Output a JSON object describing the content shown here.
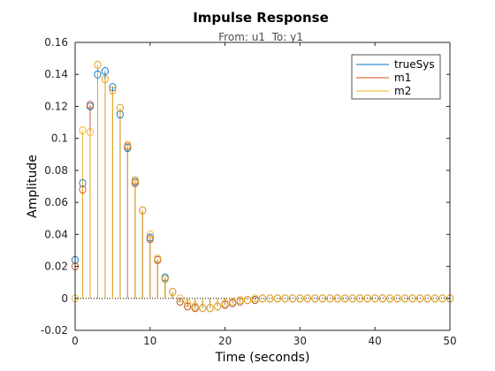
{
  "chart_data": {
    "type": "line",
    "plot_style": "stem",
    "title": "Impulse Response",
    "subtitle": "From: u1  To: y1",
    "xlabel": "Time (seconds)",
    "ylabel": "Amplitude",
    "xlim": [
      0,
      50
    ],
    "ylim": [
      -0.02,
      0.16
    ],
    "xticks": [
      0,
      10,
      20,
      30,
      40,
      50
    ],
    "yticks": [
      -0.02,
      0,
      0.02,
      0.04,
      0.06,
      0.08,
      0.1,
      0.12,
      0.14,
      0.16
    ],
    "ytick_labels": [
      "-0.02",
      "0",
      "0.02",
      "0.04",
      "0.06",
      "0.08",
      "0.1",
      "0.12",
      "0.14",
      "0.16"
    ],
    "grid": false,
    "legend_position": "top-right",
    "series": [
      {
        "name": "trueSys",
        "color": "#0072bd",
        "x": [
          0,
          1,
          2,
          3,
          4,
          5,
          6,
          7,
          8,
          9,
          10,
          11,
          12,
          13,
          14,
          15,
          16,
          17,
          18,
          19,
          20,
          21,
          22,
          23,
          24,
          25,
          26,
          27,
          28,
          29,
          30,
          31,
          32,
          33,
          34,
          35,
          36,
          37,
          38,
          39,
          40,
          41,
          42,
          43,
          44,
          45,
          46,
          47,
          48,
          49,
          50
        ],
        "y": [
          0.024,
          0.072,
          0.12,
          0.14,
          0.142,
          0.132,
          0.115,
          0.094,
          0.073,
          0.055,
          0.038,
          0.024,
          0.013,
          0.004,
          -0.002,
          -0.005,
          -0.006,
          -0.006,
          -0.006,
          -0.005,
          -0.004,
          -0.003,
          -0.002,
          -0.001,
          -0.001,
          0,
          0,
          0,
          0,
          0,
          0,
          0,
          0,
          0,
          0,
          0,
          0,
          0,
          0,
          0,
          0,
          0,
          0,
          0,
          0,
          0,
          0,
          0,
          0,
          0,
          0
        ]
      },
      {
        "name": "m1",
        "color": "#d95319",
        "x": [
          0,
          1,
          2,
          3,
          4,
          5,
          6,
          7,
          8,
          9,
          10,
          11,
          12,
          13,
          14,
          15,
          16,
          17,
          18,
          19,
          20,
          21,
          22,
          23,
          24,
          25,
          26,
          27,
          28,
          29,
          30,
          31,
          32,
          33,
          34,
          35,
          36,
          37,
          38,
          39,
          40,
          41,
          42,
          43,
          44,
          45,
          46,
          47,
          48,
          49,
          50
        ],
        "y": [
          0.02,
          0.068,
          0.121,
          0.146,
          0.137,
          0.13,
          0.119,
          0.095,
          0.072,
          0.055,
          0.037,
          0.024,
          0.012,
          0.004,
          -0.002,
          -0.005,
          -0.006,
          -0.006,
          -0.006,
          -0.005,
          -0.004,
          -0.003,
          -0.002,
          -0.001,
          -0.001,
          0,
          0,
          0,
          0,
          0,
          0,
          0,
          0,
          0,
          0,
          0,
          0,
          0,
          0,
          0,
          0,
          0,
          0,
          0,
          0,
          0,
          0,
          0,
          0,
          0,
          0
        ]
      },
      {
        "name": "m2",
        "color": "#edb120",
        "x": [
          0,
          1,
          2,
          3,
          4,
          5,
          6,
          7,
          8,
          9,
          10,
          11,
          12,
          13,
          14,
          15,
          16,
          17,
          18,
          19,
          20,
          21,
          22,
          23,
          24,
          25,
          26,
          27,
          28,
          29,
          30,
          31,
          32,
          33,
          34,
          35,
          36,
          37,
          38,
          39,
          40,
          41,
          42,
          43,
          44,
          45,
          46,
          47,
          48,
          49,
          50
        ],
        "y": [
          0,
          0.105,
          0.104,
          0.146,
          0.137,
          0.13,
          0.119,
          0.096,
          0.074,
          0.055,
          0.04,
          0.025,
          0.012,
          0.004,
          0.0,
          -0.003,
          -0.005,
          -0.006,
          -0.006,
          -0.005,
          -0.003,
          -0.002,
          -0.001,
          -0.001,
          0,
          0,
          0,
          0,
          0,
          0,
          0,
          0,
          0,
          0,
          0,
          0,
          0,
          0,
          0,
          0,
          0,
          0,
          0,
          0,
          0,
          0,
          0,
          0,
          0,
          0,
          0
        ]
      }
    ]
  }
}
